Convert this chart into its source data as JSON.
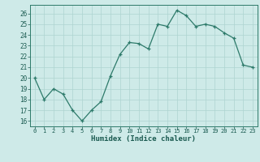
{
  "x": [
    0,
    1,
    2,
    3,
    4,
    5,
    6,
    7,
    8,
    9,
    10,
    11,
    12,
    13,
    14,
    15,
    16,
    17,
    18,
    19,
    20,
    21,
    22,
    23
  ],
  "y": [
    20.0,
    18.0,
    19.0,
    18.5,
    17.0,
    16.0,
    17.0,
    17.8,
    20.2,
    22.2,
    23.3,
    23.2,
    22.7,
    25.0,
    24.8,
    26.3,
    25.8,
    24.8,
    25.0,
    24.8,
    24.2,
    23.7,
    21.2,
    21.0
  ],
  "xlabel": "Humidex (Indice chaleur)",
  "ylim": [
    15.5,
    26.8
  ],
  "xlim": [
    -0.5,
    23.5
  ],
  "yticks": [
    16,
    17,
    18,
    19,
    20,
    21,
    22,
    23,
    24,
    25,
    26
  ],
  "xticks": [
    0,
    1,
    2,
    3,
    4,
    5,
    6,
    7,
    8,
    9,
    10,
    11,
    12,
    13,
    14,
    15,
    16,
    17,
    18,
    19,
    20,
    21,
    22,
    23
  ],
  "line_color": "#2d7a6a",
  "bg_color": "#ceeae8",
  "grid_color": "#aed4d0",
  "label_color": "#1a5a50",
  "tick_color": "#1a5a50",
  "axis_color": "#2d7a6a"
}
